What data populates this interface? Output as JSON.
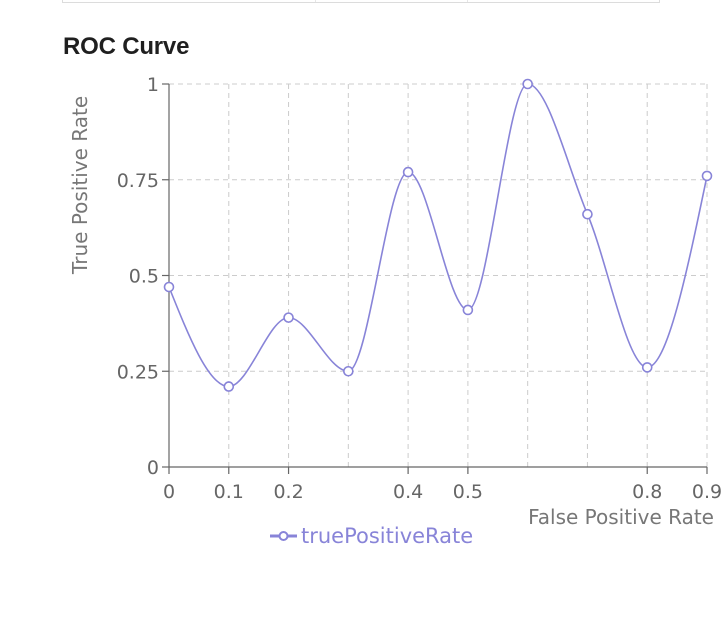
{
  "chart_data": {
    "type": "line",
    "title": "ROC Curve",
    "xlabel": "False Positive Rate",
    "ylabel": "True Positive Rate",
    "x": [
      0,
      0.1,
      0.2,
      0.3,
      0.4,
      0.5,
      0.6,
      0.7,
      0.8,
      0.9
    ],
    "x_ticks": [
      0,
      0.1,
      0.2,
      0.4,
      0.5,
      0.8,
      0.9
    ],
    "x_tick_labels": [
      "0",
      "0.1",
      "0.2",
      "0.4",
      "0.5",
      "0.8",
      "0.9"
    ],
    "y_ticks": [
      0,
      0.25,
      0.5,
      0.75,
      1
    ],
    "y_tick_labels": [
      "0",
      "0.25",
      "0.5",
      "0.75",
      "1"
    ],
    "xlim": [
      0,
      0.9
    ],
    "ylim": [
      0,
      1
    ],
    "grid": true,
    "legend_position": "bottom-center",
    "series": [
      {
        "name": "truePositiveRate",
        "color": "#8884d8",
        "values": [
          0.47,
          0.21,
          0.39,
          0.25,
          0.77,
          0.41,
          1.0,
          0.66,
          0.26,
          0.76
        ]
      }
    ]
  }
}
